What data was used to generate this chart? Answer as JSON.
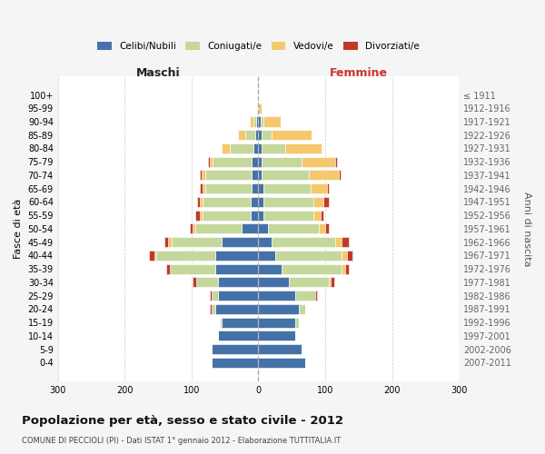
{
  "age_groups": [
    "100+",
    "95-99",
    "90-94",
    "85-89",
    "80-84",
    "75-79",
    "70-74",
    "65-69",
    "60-64",
    "55-59",
    "50-54",
    "45-49",
    "40-44",
    "35-39",
    "30-34",
    "25-29",
    "20-24",
    "15-19",
    "10-14",
    "5-9",
    "0-4"
  ],
  "birth_years": [
    "≤ 1911",
    "1912-1916",
    "1917-1921",
    "1922-1926",
    "1927-1931",
    "1932-1936",
    "1937-1941",
    "1942-1946",
    "1947-1951",
    "1952-1956",
    "1957-1961",
    "1962-1966",
    "1967-1971",
    "1972-1976",
    "1977-1981",
    "1982-1986",
    "1987-1991",
    "1992-1996",
    "1997-2001",
    "2002-2006",
    "2007-2011"
  ],
  "maschi": {
    "celibi": [
      1,
      2,
      3,
      5,
      8,
      10,
      10,
      10,
      12,
      12,
      25,
      55,
      65,
      65,
      60,
      60,
      65,
      55,
      60,
      70,
      70
    ],
    "coniugati": [
      0,
      0,
      5,
      15,
      35,
      58,
      70,
      70,
      72,
      72,
      70,
      75,
      88,
      68,
      33,
      10,
      5,
      2,
      0,
      0,
      0
    ],
    "vedovi": [
      0,
      0,
      5,
      10,
      12,
      5,
      5,
      3,
      3,
      3,
      3,
      5,
      3,
      0,
      0,
      0,
      0,
      0,
      0,
      0,
      0
    ],
    "divorziati": [
      0,
      0,
      0,
      0,
      0,
      3,
      3,
      5,
      5,
      8,
      5,
      5,
      8,
      5,
      5,
      3,
      3,
      0,
      0,
      0,
      0
    ]
  },
  "femmine": {
    "nubili": [
      0,
      0,
      3,
      5,
      5,
      5,
      5,
      8,
      8,
      8,
      15,
      20,
      25,
      35,
      45,
      55,
      60,
      55,
      55,
      65,
      70
    ],
    "coniugate": [
      0,
      0,
      5,
      15,
      35,
      60,
      70,
      70,
      75,
      75,
      75,
      95,
      100,
      90,
      60,
      30,
      10,
      5,
      0,
      0,
      0
    ],
    "vedove": [
      0,
      5,
      25,
      60,
      55,
      50,
      45,
      25,
      15,
      10,
      10,
      10,
      8,
      5,
      3,
      0,
      0,
      0,
      0,
      0,
      0
    ],
    "divorziate": [
      0,
      0,
      0,
      0,
      0,
      3,
      3,
      3,
      8,
      5,
      5,
      10,
      8,
      5,
      5,
      3,
      0,
      0,
      0,
      0,
      0
    ]
  },
  "color_celibi": "#4472a8",
  "color_coniugati": "#c5d89c",
  "color_vedovi": "#f5c86e",
  "color_divorziati": "#c0392b",
  "title": "Popolazione per età, sesso e stato civile - 2012",
  "subtitle": "COMUNE DI PECCIOLI (PI) - Dati ISTAT 1° gennaio 2012 - Elaborazione TUTTITALIA.IT",
  "label_maschi": "Maschi",
  "label_femmine": "Femmine",
  "ylabel_left": "Fasce di età",
  "ylabel_right": "Anni di nascita",
  "xlim": 300,
  "legend_labels": [
    "Celibi/Nubili",
    "Coniugati/e",
    "Vedovi/e",
    "Divorziati/e"
  ],
  "bg_color": "#f5f5f5",
  "plot_bg_color": "#ffffff"
}
